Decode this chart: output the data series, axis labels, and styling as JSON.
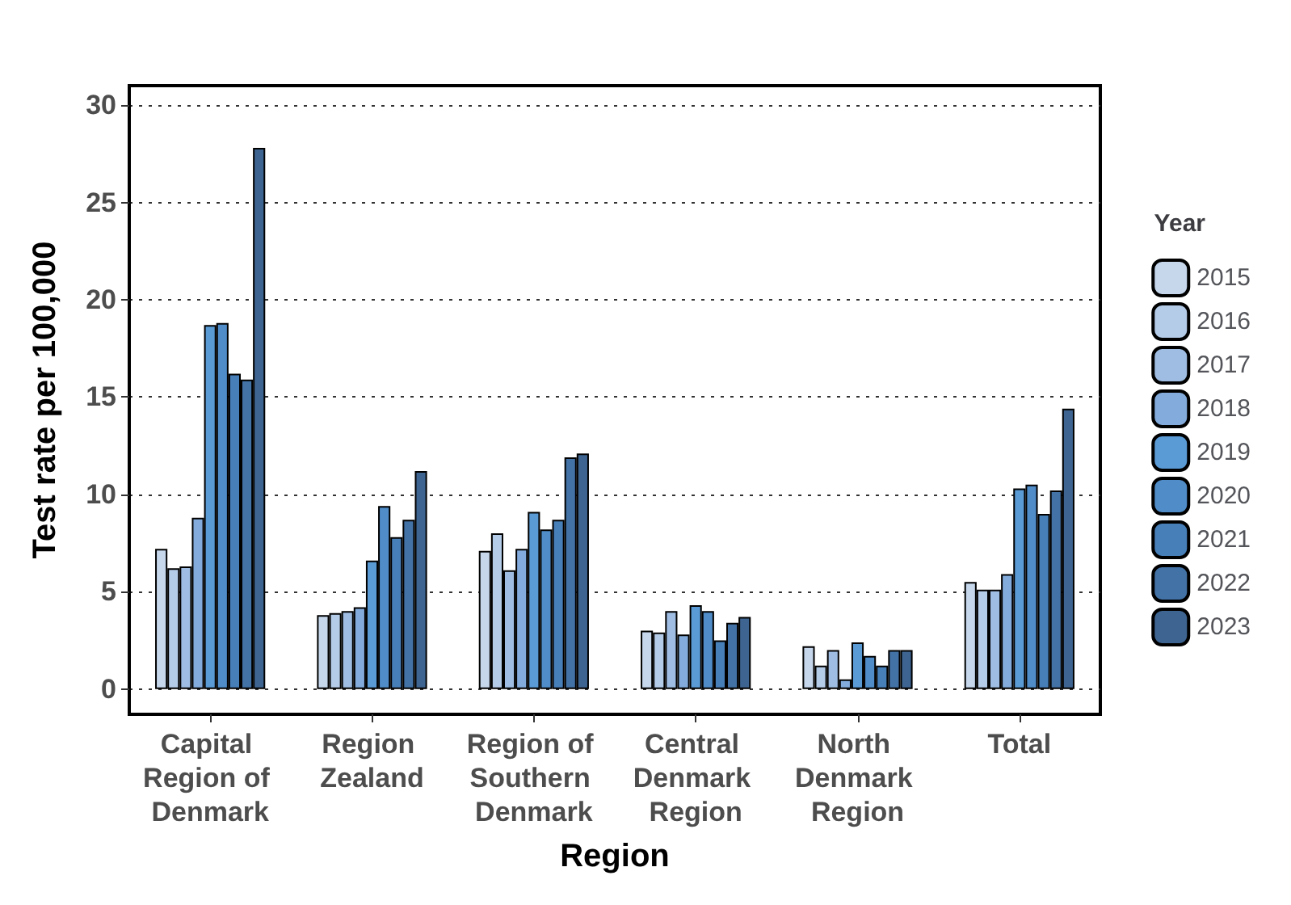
{
  "chart_data": {
    "type": "bar",
    "xlabel": "Region",
    "ylabel": "Test rate per 100,000",
    "legend_title": "Year",
    "categories": [
      "Capital Region of Denmark",
      "Region Zealand",
      "Region of Southern Denmark",
      "Central Denmark Region",
      "North Denmark Region",
      "Total"
    ],
    "series": [
      {
        "name": "2015",
        "color": "#c6d7ec",
        "values": [
          7.2,
          3.8,
          7.1,
          3.0,
          2.2,
          5.5
        ]
      },
      {
        "name": "2016",
        "color": "#b5cce8",
        "values": [
          6.2,
          3.9,
          8.0,
          2.9,
          1.2,
          5.1
        ]
      },
      {
        "name": "2017",
        "color": "#9fbde2",
        "values": [
          6.3,
          4.0,
          6.1,
          4.0,
          2.0,
          5.1
        ]
      },
      {
        "name": "2018",
        "color": "#83acdc",
        "values": [
          8.8,
          4.2,
          7.2,
          2.8,
          0.5,
          5.9
        ]
      },
      {
        "name": "2019",
        "color": "#5a9bd6",
        "values": [
          18.7,
          6.6,
          9.1,
          4.3,
          2.4,
          10.3
        ]
      },
      {
        "name": "2020",
        "color": "#4f8cc8",
        "values": [
          18.8,
          9.4,
          8.2,
          4.0,
          1.7,
          10.5
        ]
      },
      {
        "name": "2021",
        "color": "#477fb9",
        "values": [
          16.2,
          7.8,
          8.7,
          2.5,
          1.2,
          9.0
        ]
      },
      {
        "name": "2022",
        "color": "#4372a6",
        "values": [
          15.9,
          8.7,
          11.9,
          3.4,
          2.0,
          10.2
        ]
      },
      {
        "name": "2023",
        "color": "#3e6591",
        "values": [
          27.8,
          11.2,
          12.1,
          3.7,
          2.0,
          14.4
        ]
      }
    ],
    "ylim": [
      -1.3,
      31
    ],
    "yticks": [
      0,
      5,
      10,
      15,
      20,
      25,
      30
    ],
    "grid": "y",
    "legend": "right"
  }
}
